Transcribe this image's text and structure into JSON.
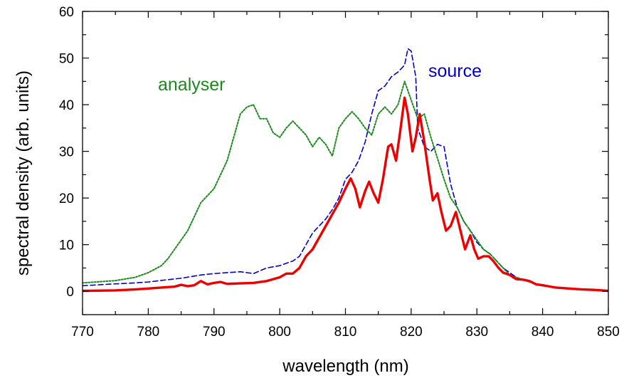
{
  "chart_data": {
    "type": "line",
    "title": "",
    "xlabel": "wavelength (nm)",
    "ylabel": "spectral density (arb. units)",
    "xlim": [
      770,
      850
    ],
    "ylim": [
      -5,
      60
    ],
    "xticks": [
      770,
      780,
      790,
      800,
      810,
      820,
      830,
      840,
      850
    ],
    "yticks": [
      0,
      10,
      20,
      30,
      40,
      50,
      60
    ],
    "x_minor_step": 5,
    "y_minor_step": 5,
    "grid": false,
    "legend": "none",
    "annotations": [
      {
        "text": "analyser",
        "series": "analyser",
        "color": "#1a8a1a"
      },
      {
        "text": "source",
        "series": "source",
        "color": "#0000cc"
      }
    ],
    "series": [
      {
        "name": "source",
        "color": "#0000cc",
        "style": "dashed",
        "points": [
          [
            770,
            1.2
          ],
          [
            775,
            1.6
          ],
          [
            778,
            1.8
          ],
          [
            780,
            2.0
          ],
          [
            783,
            2.5
          ],
          [
            785,
            2.8
          ],
          [
            788,
            3.5
          ],
          [
            790,
            3.8
          ],
          [
            792,
            4.0
          ],
          [
            794,
            4.2
          ],
          [
            796,
            3.8
          ],
          [
            798,
            5.0
          ],
          [
            800,
            5.5
          ],
          [
            802,
            6.5
          ],
          [
            803,
            7.5
          ],
          [
            805,
            12.5
          ],
          [
            806,
            14.0
          ],
          [
            807,
            15.5
          ],
          [
            808,
            17.5
          ],
          [
            809,
            20.0
          ],
          [
            810,
            24.0
          ],
          [
            811,
            25.5
          ],
          [
            812,
            28.0
          ],
          [
            813,
            32.0
          ],
          [
            814,
            38.0
          ],
          [
            815,
            43.0
          ],
          [
            816,
            44.0
          ],
          [
            817,
            46.0
          ],
          [
            818,
            47.0
          ],
          [
            819,
            48.5
          ],
          [
            819.5,
            52.0
          ],
          [
            820,
            51.5
          ],
          [
            820.7,
            46.0
          ],
          [
            821,
            35.0
          ],
          [
            822,
            31.0
          ],
          [
            823,
            30.0
          ],
          [
            824,
            31.5
          ],
          [
            825,
            31.0
          ],
          [
            826,
            23.0
          ],
          [
            827,
            18.0
          ],
          [
            828,
            15.0
          ],
          [
            829,
            13.0
          ],
          [
            830,
            10.5
          ],
          [
            831,
            9.0
          ],
          [
            832,
            8.0
          ],
          [
            833,
            6.5
          ],
          [
            834,
            5.0
          ],
          [
            835,
            4.0
          ],
          [
            836,
            3.0
          ],
          [
            838,
            2.0
          ],
          [
            840,
            1.2
          ],
          [
            843,
            0.6
          ],
          [
            846,
            0.3
          ],
          [
            850,
            0.1
          ]
        ]
      },
      {
        "name": "analyser",
        "color": "#1a8a1a",
        "style": "dotted",
        "points": [
          [
            770,
            1.8
          ],
          [
            773,
            2.1
          ],
          [
            775,
            2.3
          ],
          [
            778,
            3.0
          ],
          [
            780,
            4.0
          ],
          [
            782,
            5.5
          ],
          [
            783,
            7.0
          ],
          [
            785,
            11.0
          ],
          [
            786,
            13.0
          ],
          [
            787,
            16.0
          ],
          [
            788,
            19.0
          ],
          [
            789,
            20.5
          ],
          [
            790,
            22.0
          ],
          [
            791,
            25.0
          ],
          [
            792,
            28.0
          ],
          [
            793,
            33.0
          ],
          [
            794,
            38.0
          ],
          [
            795,
            39.5
          ],
          [
            796,
            40.0
          ],
          [
            797,
            37.0
          ],
          [
            798,
            37.0
          ],
          [
            799,
            34.0
          ],
          [
            800,
            33.0
          ],
          [
            801,
            35.0
          ],
          [
            802,
            36.5
          ],
          [
            803,
            35.0
          ],
          [
            804,
            33.5
          ],
          [
            805,
            31.0
          ],
          [
            806,
            33.0
          ],
          [
            807,
            31.5
          ],
          [
            808,
            29.0
          ],
          [
            809,
            35.0
          ],
          [
            810,
            37.0
          ],
          [
            811,
            38.5
          ],
          [
            812,
            37.0
          ],
          [
            813,
            35.0
          ],
          [
            814,
            33.5
          ],
          [
            815,
            38.0
          ],
          [
            816,
            39.5
          ],
          [
            817,
            38.0
          ],
          [
            818,
            40.0
          ],
          [
            819,
            45.0
          ],
          [
            820,
            41.0
          ],
          [
            821,
            37.0
          ],
          [
            822,
            38.0
          ],
          [
            823,
            33.0
          ],
          [
            824,
            28.5
          ],
          [
            825,
            24.0
          ],
          [
            826,
            20.0
          ],
          [
            827,
            18.0
          ],
          [
            828,
            15.0
          ],
          [
            829,
            13.0
          ],
          [
            830,
            11.0
          ],
          [
            831,
            9.0
          ],
          [
            832,
            8.0
          ],
          [
            833,
            6.5
          ],
          [
            834,
            5.0
          ],
          [
            835,
            3.5
          ],
          [
            837,
            2.5
          ],
          [
            840,
            1.2
          ],
          [
            845,
            0.4
          ],
          [
            850,
            0.1
          ]
        ]
      },
      {
        "name": "",
        "color": "#ee0000",
        "style": "solid",
        "points": [
          [
            770,
            0.1
          ],
          [
            775,
            0.2
          ],
          [
            778,
            0.4
          ],
          [
            780,
            0.6
          ],
          [
            782,
            0.8
          ],
          [
            784,
            1.0
          ],
          [
            785,
            1.4
          ],
          [
            786,
            1.1
          ],
          [
            787,
            1.3
          ],
          [
            788,
            2.2
          ],
          [
            789,
            1.5
          ],
          [
            790,
            1.8
          ],
          [
            791,
            2.0
          ],
          [
            792,
            1.6
          ],
          [
            794,
            1.7
          ],
          [
            796,
            1.8
          ],
          [
            798,
            2.2
          ],
          [
            800,
            3.0
          ],
          [
            801,
            3.8
          ],
          [
            802,
            3.8
          ],
          [
            803,
            5.0
          ],
          [
            804,
            7.5
          ],
          [
            805,
            9.0
          ],
          [
            806,
            11.5
          ],
          [
            807,
            14.0
          ],
          [
            808,
            16.5
          ],
          [
            809,
            19.0
          ],
          [
            810,
            22.0
          ],
          [
            810.8,
            24.2
          ],
          [
            811.5,
            22.0
          ],
          [
            812.2,
            18.0
          ],
          [
            813,
            21.5
          ],
          [
            813.6,
            23.5
          ],
          [
            814.3,
            21.0
          ],
          [
            815,
            19.0
          ],
          [
            815.7,
            24.0
          ],
          [
            816.5,
            31.0
          ],
          [
            817,
            31.5
          ],
          [
            817.7,
            28.0
          ],
          [
            818.3,
            34.0
          ],
          [
            819,
            41.5
          ],
          [
            819.5,
            38.0
          ],
          [
            820.2,
            30.0
          ],
          [
            820.7,
            33.0
          ],
          [
            821.3,
            38.0
          ],
          [
            822,
            32.0
          ],
          [
            822.8,
            24.0
          ],
          [
            823.3,
            19.5
          ],
          [
            824,
            21.0
          ],
          [
            824.6,
            17.0
          ],
          [
            825.3,
            13.0
          ],
          [
            826,
            14.0
          ],
          [
            826.8,
            17.0
          ],
          [
            827.5,
            13.0
          ],
          [
            828.2,
            9.0
          ],
          [
            829,
            12.0
          ],
          [
            829.6,
            9.0
          ],
          [
            830.2,
            7.0
          ],
          [
            831,
            7.5
          ],
          [
            831.8,
            7.5
          ],
          [
            832.5,
            6.5
          ],
          [
            833.3,
            5.0
          ],
          [
            834,
            4.0
          ],
          [
            835,
            3.5
          ],
          [
            836,
            2.6
          ],
          [
            837,
            2.5
          ],
          [
            838,
            2.2
          ],
          [
            839,
            1.5
          ],
          [
            840,
            1.3
          ],
          [
            842,
            0.8
          ],
          [
            844,
            0.6
          ],
          [
            846,
            0.4
          ],
          [
            848,
            0.3
          ],
          [
            850,
            0.1
          ]
        ]
      }
    ]
  }
}
